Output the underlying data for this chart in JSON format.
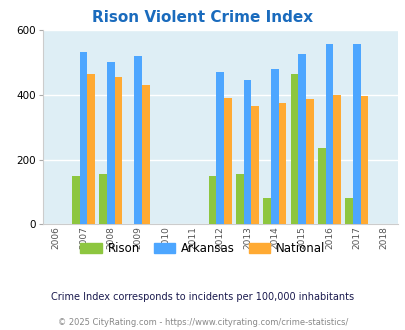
{
  "title": "Rison Violent Crime Index",
  "all_years": [
    2006,
    2007,
    2008,
    2009,
    2010,
    2011,
    2012,
    2013,
    2014,
    2015,
    2016,
    2017,
    2018
  ],
  "data_years": [
    2007,
    2008,
    2009,
    2012,
    2013,
    2014,
    2015,
    2016,
    2017
  ],
  "rison": [
    150,
    155,
    0,
    150,
    155,
    80,
    465,
    235,
    80
  ],
  "arkansas": [
    530,
    500,
    520,
    470,
    445,
    480,
    525,
    555,
    555
  ],
  "national": [
    465,
    455,
    430,
    390,
    365,
    375,
    385,
    400,
    395
  ],
  "rison_color": "#8dc63f",
  "arkansas_color": "#4da6ff",
  "national_color": "#ffaa33",
  "bg_color": "#deeef5",
  "ylim": [
    0,
    600
  ],
  "yticks": [
    0,
    200,
    400,
    600
  ],
  "bar_width": 0.28,
  "note": "Crime Index corresponds to incidents per 100,000 inhabitants",
  "copyright": "© 2025 CityRating.com - https://www.cityrating.com/crime-statistics/",
  "legend_labels": [
    "Rison",
    "Arkansas",
    "National"
  ],
  "title_color": "#1a6bbd",
  "note_color": "#1a1a4e",
  "copyright_color": "#888888"
}
